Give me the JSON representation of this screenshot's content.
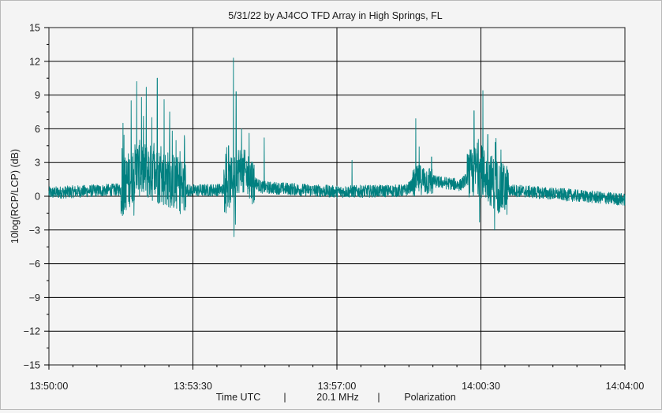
{
  "chart_data": {
    "type": "line",
    "title": "5/31/22  by  AJ4CO TFD Array  in  High Springs, FL",
    "ylabel": "10log(RCP/LCP) (dB)",
    "xlabel_parts": [
      "Time UTC",
      "|",
      "20.1 MHz",
      "|",
      "Polarization"
    ],
    "ylim": [
      -15,
      15
    ],
    "yticks": [
      15,
      12,
      9,
      6,
      3,
      0,
      -3,
      -6,
      -9,
      -12,
      -15
    ],
    "xlim_seconds_after_13_50_00": [
      0,
      840
    ],
    "xticks": [
      {
        "t": 0,
        "label": "13:50:00"
      },
      {
        "t": 210,
        "label": "13:53:30"
      },
      {
        "t": 420,
        "label": "13:57:00"
      },
      {
        "t": 630,
        "label": "14:00:30"
      },
      {
        "t": 840,
        "label": "14:04:00"
      }
    ],
    "grid": true,
    "series": [
      {
        "color": "#008080",
        "description_points": [
          {
            "t": 0,
            "base": 0.3
          },
          {
            "t": 105,
            "base": 0.6
          },
          {
            "t": 130,
            "base": 2.5
          },
          {
            "t": 175,
            "base": 1.5
          },
          {
            "t": 205,
            "base": 0.5
          },
          {
            "t": 260,
            "base": 0.6
          },
          {
            "t": 275,
            "base": 2.5
          },
          {
            "t": 310,
            "base": 0.8
          },
          {
            "t": 420,
            "base": 0.4
          },
          {
            "t": 520,
            "base": 0.5
          },
          {
            "t": 540,
            "base": 1.5
          },
          {
            "t": 600,
            "base": 1.0
          },
          {
            "t": 625,
            "base": 2.5
          },
          {
            "t": 660,
            "base": 0.6
          },
          {
            "t": 840,
            "base": -0.3
          }
        ],
        "peaks": [
          {
            "t": 108,
            "v": 6.5
          },
          {
            "t": 120,
            "v": 8.5
          },
          {
            "t": 128,
            "v": 10.2
          },
          {
            "t": 135,
            "v": 8.8
          },
          {
            "t": 142,
            "v": 9.7
          },
          {
            "t": 150,
            "v": 7.0
          },
          {
            "t": 158,
            "v": 10.5
          },
          {
            "t": 168,
            "v": 8.6
          },
          {
            "t": 176,
            "v": 7.5
          },
          {
            "t": 190,
            "v": 3.0
          },
          {
            "t": 262,
            "v": 4.5
          },
          {
            "t": 269,
            "v": 12.3
          },
          {
            "t": 273,
            "v": 9.3
          },
          {
            "t": 281,
            "v": 6.0
          },
          {
            "t": 292,
            "v": 5.6
          },
          {
            "t": 314,
            "v": 5.2
          },
          {
            "t": 442,
            "v": 3.2
          },
          {
            "t": 535,
            "v": 6.9
          },
          {
            "t": 540,
            "v": 4.4
          },
          {
            "t": 558,
            "v": 3.5
          },
          {
            "t": 620,
            "v": 7.6
          },
          {
            "t": 633,
            "v": 9.4
          },
          {
            "t": 640,
            "v": 5.5
          },
          {
            "t": 651,
            "v": 4.8
          },
          {
            "t": 663,
            "v": 2.5
          }
        ],
        "troughs": [
          {
            "t": 124,
            "v": -1.7
          },
          {
            "t": 270,
            "v": -3.6
          },
          {
            "t": 272,
            "v": -2.5
          },
          {
            "t": 628,
            "v": -2.3
          },
          {
            "t": 650,
            "v": -3.0
          }
        ]
      }
    ]
  }
}
